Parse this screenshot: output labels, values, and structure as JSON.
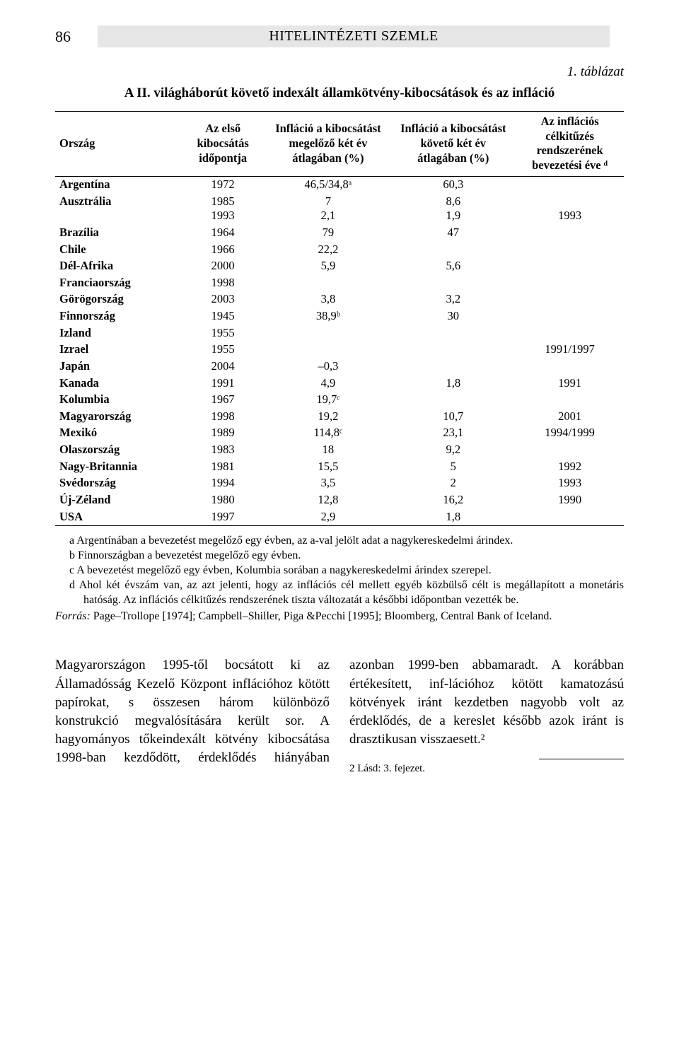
{
  "page_number": "86",
  "journal_title": "HITELINTÉZETI SZEMLE",
  "table_label": "1. táblázat",
  "table_title": "A II. világháborút követő indexált államkötvény-kibocsátások és az infláció",
  "columns": [
    "Ország",
    "Az első kibocsátás időpontja",
    "Infláció a kibocsátást megelőző két év átlagában (%)",
    "Infláció a kibocsátást követő két év átlagában (%)",
    "Az inflációs célkitűzés rendszerének bevezetési éve ᵈ"
  ],
  "rows": [
    {
      "c": "Argentína",
      "y": "1972",
      "p": "46,5/34,8ᵃ",
      "f": "60,3",
      "t": ""
    },
    {
      "c": "Ausztrália",
      "y": "1985\n1993",
      "p": "7\n2,1",
      "f": "8,6\n1,9",
      "t": "\n1993"
    },
    {
      "c": "Brazília",
      "y": "1964",
      "p": "79",
      "f": "47",
      "t": ""
    },
    {
      "c": "Chile",
      "y": "1966",
      "p": "22,2",
      "f": "",
      "t": ""
    },
    {
      "c": "Dél-Afrika",
      "y": "2000",
      "p": "5,9",
      "f": "5,6",
      "t": ""
    },
    {
      "c": "Franciaország",
      "y": "1998",
      "p": "",
      "f": "",
      "t": ""
    },
    {
      "c": "Görögország",
      "y": "2003",
      "p": "3,8",
      "f": "3,2",
      "t": ""
    },
    {
      "c": "Finnország",
      "y": "1945",
      "p": "38,9ᵇ",
      "f": "30",
      "t": ""
    },
    {
      "c": "Izland",
      "y": "1955",
      "p": "",
      "f": "",
      "t": ""
    },
    {
      "c": "Izrael",
      "y": "1955",
      "p": "",
      "f": "",
      "t": "1991/1997"
    },
    {
      "c": "Japán",
      "y": "2004",
      "p": "–0,3",
      "f": "",
      "t": ""
    },
    {
      "c": "Kanada",
      "y": "1991",
      "p": "4,9",
      "f": "1,8",
      "t": "1991"
    },
    {
      "c": "Kolumbia",
      "y": "1967",
      "p": "19,7ᶜ",
      "f": "",
      "t": ""
    },
    {
      "c": "Magyarország",
      "y": "1998",
      "p": "19,2",
      "f": "10,7",
      "t": "2001"
    },
    {
      "c": "Mexikó",
      "y": "1989",
      "p": "114,8ᶜ",
      "f": "23,1",
      "t": "1994/1999"
    },
    {
      "c": "Olaszország",
      "y": "1983",
      "p": "18",
      "f": "9,2",
      "t": ""
    },
    {
      "c": "Nagy-Britannia",
      "y": "1981",
      "p": "15,5",
      "f": "5",
      "t": "1992"
    },
    {
      "c": "Svédország",
      "y": "1994",
      "p": "3,5",
      "f": "2",
      "t": "1993"
    },
    {
      "c": "Új-Zéland",
      "y": "1980",
      "p": "12,8",
      "f": "16,2",
      "t": "1990"
    },
    {
      "c": "USA",
      "y": "1997",
      "p": "2,9",
      "f": "1,8",
      "t": ""
    }
  ],
  "footnotes": {
    "a": "a   Argentínában a bevezetést megelőző egy évben, az a-val jelölt adat a nagykereskedelmi árindex.",
    "b": "b   Finnországban a bevezetést megelőző egy évben.",
    "c": "c   A bevezetést megelőző egy évben, Kolumbia sorában a nagykereskedelmi árindex szerepel.",
    "d": "d   Ahol két évszám van, az azt jelenti, hogy az inflációs cél mellett egyéb közbülső célt is megállapított a monetáris hatóság. Az inflációs célkitűzés rendszerének tiszta változatát a későbbi időpontban vezették be."
  },
  "source_label": "Forrás:",
  "source_text": " Page–Trollope [1974]; Campbell–Shiller, Piga &Pecchi [1995]; Bloomberg, Central Bank of Iceland.",
  "body_para": "Magyarországon 1995-től bocsátott ki az Államadósság Kezelő Központ inflációhoz kötött papírokat, s összesen három különböző konstrukció megvalósítására került sor. A hagyományos tőkeindexált kötvény kibocsátása 1998-ban kezdődött, érdeklődés hiányában azonban 1999-ben abbamaradt. A korábban értékesített, inf-lációhoz kötött kamatozású kötvények iránt kezdetben nagyobb volt az érdeklődés, de a kereslet később azok iránt is drasztikusan visszaesett.²",
  "page_footnote": "2   Lásd: 3. fejezet."
}
